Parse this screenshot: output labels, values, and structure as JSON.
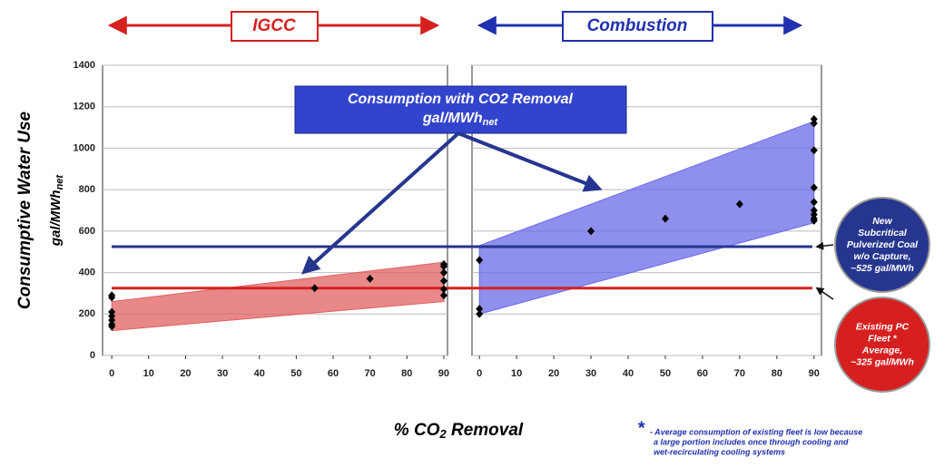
{
  "figure": {
    "y_label": "Consumptive Water Use",
    "y_unit": [
      "gal/MWh",
      "net"
    ],
    "x_label": [
      "% CO",
      "2",
      " Removal"
    ],
    "callout": [
      "Consumption with CO2 Removal",
      "gal/MWh",
      "net"
    ],
    "reference_lines": [
      {
        "value": 525,
        "color": "#26368f",
        "label": [
          "New",
          "Subcritical",
          "Pulverized Coal",
          "w/o Capture,",
          "~525 gal/MWh"
        ]
      },
      {
        "value": 325,
        "color": "#d62020",
        "label": [
          "Existing PC",
          "Fleet *",
          "Average,",
          "~325 gal/MWh"
        ]
      }
    ],
    "footnote": [
      "*",
      "- Average consumption of existing fleet is low because",
      "a large portion includes once through cooling and",
      "wet-recirculating cooling systems"
    ]
  },
  "chart_data": [
    {
      "type": "scatter",
      "title": "IGCC",
      "color": "#d62020",
      "x": [
        0,
        0,
        0,
        0,
        0,
        0,
        0,
        55,
        70,
        90,
        90,
        90,
        90,
        90,
        90
      ],
      "values": [
        290,
        280,
        210,
        190,
        170,
        150,
        140,
        325,
        370,
        440,
        430,
        400,
        360,
        320,
        290
      ],
      "band": {
        "x": [
          0,
          90
        ],
        "lower": [
          120,
          260
        ],
        "upper": [
          260,
          450
        ],
        "color": "#e06060"
      },
      "xlim": [
        -2.5,
        91
      ],
      "xticks": [
        0,
        10,
        20,
        30,
        40,
        50,
        60,
        70,
        80,
        90
      ],
      "ylim": [
        0,
        1400
      ],
      "yticks": [
        0,
        200,
        400,
        600,
        800,
        1000,
        1200,
        1400
      ],
      "grid": true,
      "ytick_labels": true
    },
    {
      "type": "scatter",
      "title": "Combustion",
      "color": "#2030b0",
      "x": [
        0,
        0,
        0,
        30,
        50,
        70,
        90,
        90,
        90,
        90,
        90,
        90,
        90,
        90,
        90
      ],
      "values": [
        460,
        225,
        200,
        600,
        660,
        730,
        1140,
        1120,
        990,
        810,
        740,
        700,
        680,
        660,
        650
      ],
      "band": {
        "x": [
          0,
          90
        ],
        "lower": [
          200,
          640
        ],
        "upper": [
          530,
          1130
        ],
        "color": "#6a6ae8"
      },
      "xlim": [
        -2,
        92
      ],
      "xticks": [
        0,
        10,
        20,
        30,
        40,
        50,
        60,
        70,
        80,
        90
      ],
      "ylim": [
        0,
        1400
      ],
      "yticks": [
        0,
        200,
        400,
        600,
        800,
        1000,
        1200,
        1400
      ],
      "grid": true,
      "ytick_labels": false
    }
  ]
}
